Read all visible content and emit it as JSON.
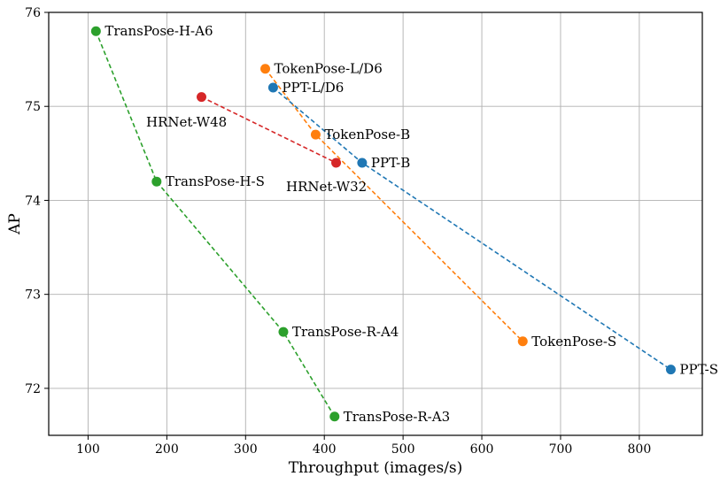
{
  "chart_data": {
    "type": "scatter",
    "xlabel": "Throughput (images/s)",
    "ylabel": "AP",
    "xlim": [
      50,
      880
    ],
    "ylim": [
      71.5,
      76.0
    ],
    "xticks": [
      100,
      200,
      300,
      400,
      500,
      600,
      700,
      800
    ],
    "yticks": [
      72,
      73,
      74,
      75,
      76
    ],
    "grid": true,
    "series": [
      {
        "color": "#2ca02c",
        "points": [
          {
            "label": "TransPose-H-A6",
            "x": 110,
            "y": 75.8
          },
          {
            "label": "TransPose-H-S",
            "x": 187,
            "y": 74.2
          },
          {
            "label": "TransPose-R-A4",
            "x": 348,
            "y": 72.6
          },
          {
            "label": "TransPose-R-A3",
            "x": 413,
            "y": 71.7
          }
        ]
      },
      {
        "color": "#d62728",
        "points": [
          {
            "label": "HRNet-W48",
            "x": 244,
            "y": 75.1
          },
          {
            "label": "HRNet-W32",
            "x": 415,
            "y": 74.4
          }
        ]
      },
      {
        "color": "#ff7f0e",
        "points": [
          {
            "label": "TokenPose-L/D6",
            "x": 325,
            "y": 75.4
          },
          {
            "label": "TokenPose-B",
            "x": 389,
            "y": 74.7
          },
          {
            "label": "TokenPose-S",
            "x": 652,
            "y": 72.5
          }
        ]
      },
      {
        "color": "#1f77b4",
        "points": [
          {
            "label": "PPT-L/D6",
            "x": 335,
            "y": 75.2
          },
          {
            "label": "PPT-B",
            "x": 448,
            "y": 74.4
          },
          {
            "label": "PPT-S",
            "x": 840,
            "y": 72.2
          }
        ]
      }
    ]
  }
}
